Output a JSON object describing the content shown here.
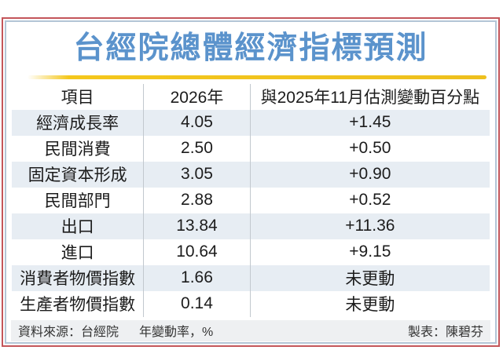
{
  "chart_data": {
    "type": "table",
    "title": "台經院總體經濟指標預測",
    "columns": [
      "項目",
      "2026年",
      "與2025年11月估測變動百分點"
    ],
    "rows": [
      {
        "label": "經濟成長率",
        "value_2026": "4.05",
        "change": "+1.45"
      },
      {
        "label": "民間消費",
        "value_2026": "2.50",
        "change": "+0.50"
      },
      {
        "label": "固定資本形成",
        "value_2026": "3.05",
        "change": "+0.90"
      },
      {
        "label": "民間部門",
        "value_2026": "2.88",
        "change": "+0.52"
      },
      {
        "label": "出口",
        "value_2026": "13.84",
        "change": "+11.36"
      },
      {
        "label": "進口",
        "value_2026": "10.64",
        "change": "+9.15"
      },
      {
        "label": "消費者物價指數",
        "value_2026": "1.66",
        "change": "未更動"
      },
      {
        "label": "生產者物價指數",
        "value_2026": "0.14",
        "change": "未更動"
      }
    ],
    "footnotes": {
      "source": "資料來源：台經院",
      "unit": "年變動率，%",
      "credit": "製表：陳碧芬"
    },
    "colors": {
      "title_blue": "#5b93cc",
      "accent_yellow": "#f2c41a",
      "row_shade": "#e7edf3",
      "outer_border_red": "#c4565a",
      "inner_border_blue": "#b3c5d6",
      "footer_bg": "#eef0f2"
    }
  }
}
